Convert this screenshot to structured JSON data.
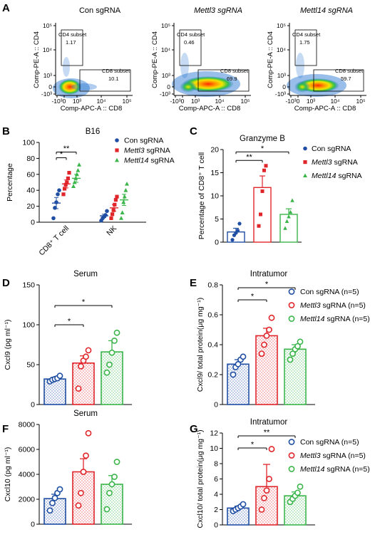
{
  "colors": {
    "con": "#1f4ea3",
    "mettl3": "#e0262b",
    "mettl14": "#3bb54a",
    "axis": "#000000"
  },
  "panels": {
    "A": {
      "letter": "A",
      "x_axis_label": "Comp-APC-A :: CD8",
      "y_axis_label": "Comp-PE-A :: CD4",
      "tick_labels": [
        "-10³",
        "0",
        "10³",
        "10⁴",
        "10⁵"
      ],
      "plots": [
        {
          "title": "Con sgRNA",
          "cd4_label": "CD4 subset",
          "cd4_value": "1.17",
          "cd8_label": "CD8 subset",
          "cd8_value": "10.1"
        },
        {
          "title": "Mettl3 sgRNA",
          "cd4_label": "CD4 subset",
          "cd4_value": "0.46",
          "cd8_label": "CD8 subset",
          "cd8_value": "69.9"
        },
        {
          "title": "Mettl14  sgRNA",
          "cd4_label": "CD4 subset",
          "cd4_value": "1.75",
          "cd8_label": "CD8 subset",
          "cd8_value": "59.7"
        }
      ]
    },
    "B": {
      "letter": "B"
    },
    "C": {
      "letter": "C"
    },
    "D": {
      "letter": "D"
    },
    "E": {
      "letter": "E"
    },
    "F": {
      "letter": "F"
    },
    "G": {
      "letter": "G"
    }
  },
  "chart_data": [
    {
      "panel": "B",
      "type": "scatter",
      "title": "B16",
      "ylabel": "Percentage",
      "ylim": [
        0,
        100
      ],
      "yticks": [
        0,
        20,
        40,
        60,
        80,
        100
      ],
      "categories": [
        "CD8⁺ T cell",
        "NK"
      ],
      "legend": [
        "Con sgRNA",
        "Mettl3 sgRNA",
        "Mettl14 sgRNA"
      ],
      "series": [
        {
          "name": "Con sgRNA",
          "groups": [
            {
              "mean": 24,
              "sem": 7,
              "points": [
                5,
                18,
                25,
                35,
                40
              ]
            },
            {
              "mean": 8,
              "sem": 2,
              "points": [
                2,
                5,
                7,
                9,
                14
              ]
            }
          ]
        },
        {
          "name": "Mettl3 sgRNA",
          "groups": [
            {
              "mean": 48,
              "sem": 5,
              "points": [
                35,
                42,
                47,
                50,
                55,
                62
              ]
            },
            {
              "mean": 18,
              "sem": 4,
              "points": [
                5,
                10,
                15,
                22,
                28,
                32
              ]
            }
          ]
        },
        {
          "name": "Mettl14 sgRNA",
          "groups": [
            {
              "mean": 55,
              "sem": 5,
              "points": [
                45,
                50,
                55,
                60,
                65,
                72
              ]
            },
            {
              "mean": 28,
              "sem": 7,
              "points": [
                5,
                12,
                25,
                32,
                40,
                48
              ]
            }
          ]
        }
      ],
      "significance": [
        {
          "label": "**",
          "from": 0,
          "to": 2
        },
        {
          "label": "*",
          "from": 0,
          "to": 1
        }
      ]
    },
    {
      "panel": "C",
      "type": "bar",
      "title": "Granzyme B",
      "ylabel": "Percentage of  CD8⁺ T cell",
      "ylim": [
        0,
        20
      ],
      "yticks": [
        0,
        5,
        10,
        15,
        20
      ],
      "categories": [
        "Con sgRNA",
        "Mettl3 sgRNA",
        "Mettl14 sgRNA"
      ],
      "values": [
        2.2,
        11.8,
        6.0
      ],
      "sem": [
        0.8,
        2.5,
        1.2
      ],
      "points": [
        [
          0.5,
          1.5,
          2.0,
          2.5,
          4.0
        ],
        [
          3.5,
          6.0,
          11.0,
          15.5,
          16.5
        ],
        [
          3.0,
          4.5,
          5.5,
          6.5,
          9.0
        ]
      ],
      "significance": [
        {
          "label": "*",
          "from": 0,
          "to": 2
        },
        {
          "label": "**",
          "from": 0,
          "to": 1
        }
      ]
    },
    {
      "panel": "D",
      "type": "bar",
      "title": "Serum",
      "ylabel": "Cxcl9 (pg ml⁻¹)",
      "ylim": [
        0,
        150
      ],
      "yticks": [
        0,
        50,
        100,
        150
      ],
      "categories": [
        "Con sgRNA (n=5)",
        "Mettl3 sgRNA (n=5)",
        "Mettl14 sgRNA (n=5)"
      ],
      "values": [
        32,
        52,
        66
      ],
      "sem": [
        2,
        9,
        14
      ],
      "points": [
        [
          29,
          31,
          32,
          33,
          36
        ],
        [
          20,
          48,
          55,
          60,
          68
        ],
        [
          40,
          50,
          65,
          80,
          90
        ]
      ],
      "significance": [
        {
          "label": "*",
          "from": 0,
          "to": 2
        },
        {
          "label": "*",
          "from": 0,
          "to": 1
        }
      ]
    },
    {
      "panel": "E",
      "type": "bar",
      "title": "Intratumor",
      "ylabel": "Cxcl9/ total protein(μg mg⁻¹)",
      "ylim": [
        0,
        0.8
      ],
      "yticks": [
        0,
        0.2,
        0.4,
        0.6,
        0.8
      ],
      "yticklabels": [
        "0",
        "0.2",
        "0.4",
        "0.6",
        "0.8"
      ],
      "categories": [
        "Con sgRNA (n=5)",
        "Mettl3 sgRNA (n=5)",
        "Mettl14 sgRNA (n=5)"
      ],
      "values": [
        0.27,
        0.46,
        0.37
      ],
      "sem": [
        0.03,
        0.05,
        0.03
      ],
      "points": [
        [
          0.2,
          0.25,
          0.27,
          0.3,
          0.32
        ],
        [
          0.34,
          0.4,
          0.46,
          0.5,
          0.58
        ],
        [
          0.3,
          0.34,
          0.37,
          0.39,
          0.42
        ]
      ],
      "legend": [
        "Con sgRNA (n=5)",
        "Mettl3 sgRNA (n=5)",
        "Mettl14 sgRNA (n=5)"
      ],
      "significance": [
        {
          "label": "*",
          "from": 0,
          "to": 2
        },
        {
          "label": "*",
          "from": 0,
          "to": 1
        }
      ]
    },
    {
      "panel": "F",
      "type": "bar",
      "title": "Serum",
      "ylabel": "Cxcl10 (pg ml⁻¹)",
      "ylim": [
        0,
        8000
      ],
      "yticks": [
        0,
        2000,
        4000,
        6000,
        8000
      ],
      "categories": [
        "Con sgRNA (n=5)",
        "Mettl3 sgRNA (n=5)",
        "Mettl14 sgRNA (n=5)"
      ],
      "values": [
        2050,
        4200,
        3200
      ],
      "sem": [
        350,
        1050,
        700
      ],
      "points": [
        [
          1100,
          1700,
          2100,
          2500,
          2800
        ],
        [
          1500,
          2500,
          4200,
          5500,
          7300
        ],
        [
          1200,
          2500,
          3200,
          3800,
          5000
        ]
      ],
      "significance": []
    },
    {
      "panel": "G",
      "type": "bar",
      "title": "Intratumor",
      "ylabel": "Cxcl10/ total protein(μg mg⁻¹)",
      "ylim": [
        0,
        12
      ],
      "yticks": [
        0,
        2,
        4,
        6,
        8,
        10,
        12
      ],
      "categories": [
        "Con sgRNA (n=5)",
        "Mettl3 sgRNA (n=5)",
        "Mettl14 sgRNA (n=5)"
      ],
      "values": [
        2.2,
        5.0,
        3.8
      ],
      "sem": [
        0.25,
        2.9,
        0.5
      ],
      "points": [
        [
          1.8,
          2.0,
          2.2,
          2.4,
          2.7
        ],
        [
          2.0,
          3.5,
          4.5,
          6.0,
          9.9
        ],
        [
          3.0,
          3.4,
          3.8,
          4.2,
          5.0
        ]
      ],
      "legend": [
        "Con sgRNA (n=5)",
        "Mettl3 sgRNA (n=5)",
        "Mettl14 sgRNA (n=5)"
      ],
      "significance": [
        {
          "label": "**",
          "from": 0,
          "to": 2
        },
        {
          "label": "*",
          "from": 0,
          "to": 1
        }
      ]
    }
  ]
}
